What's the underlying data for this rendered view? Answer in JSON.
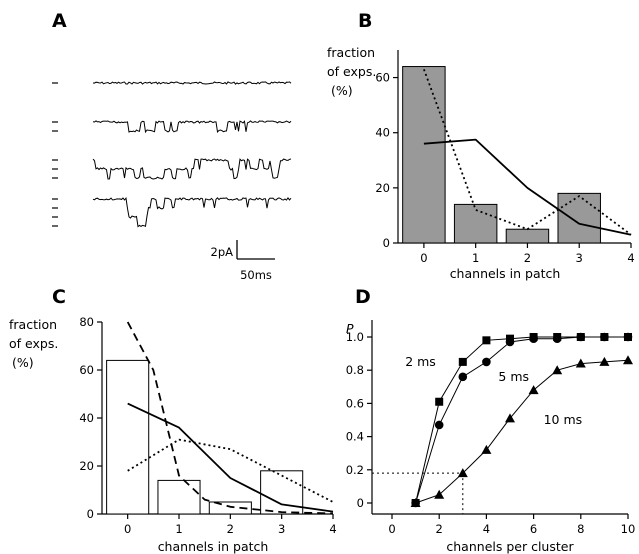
{
  "panel_labels": [
    "A",
    "B",
    "C",
    "D"
  ],
  "scale_bar": {
    "amplitude": "2pA",
    "time": "50ms"
  },
  "chart_data": [
    {
      "panel": "A",
      "type": "line",
      "description_traces": 4,
      "levels_per_trace": [
        1,
        2,
        3,
        4
      ]
    },
    {
      "panel": "B",
      "type": "bar",
      "title": "",
      "ylabel": [
        "fraction",
        "of exps.",
        "(%)"
      ],
      "xlabel": "channels in patch",
      "xlim": [
        -0.5,
        4
      ],
      "ylim": [
        0,
        70
      ],
      "xticks": [
        0,
        1,
        2,
        3,
        4
      ],
      "yticks": [
        0,
        20,
        40,
        60
      ],
      "categories": [
        0,
        1,
        2,
        3
      ],
      "values": [
        64,
        14,
        5,
        18
      ],
      "bar_color": "#999999",
      "lines": [
        {
          "style": "solid",
          "x": [
            0,
            1,
            2,
            3,
            4
          ],
          "y": [
            36,
            37.5,
            20,
            7,
            3
          ]
        },
        {
          "style": "dotted",
          "x": [
            0,
            1,
            2,
            3,
            4
          ],
          "y": [
            63,
            12,
            5,
            17,
            3
          ]
        }
      ]
    },
    {
      "panel": "C",
      "type": "bar",
      "title": "",
      "ylabel": [
        "fraction",
        "of exps.",
        "(%)"
      ],
      "xlabel": "channels in patch",
      "xlim": [
        -0.5,
        4
      ],
      "ylim": [
        0,
        80
      ],
      "xticks": [
        0,
        1,
        2,
        3,
        4
      ],
      "yticks": [
        0,
        20,
        40,
        60,
        80
      ],
      "categories": [
        0,
        1,
        2,
        3
      ],
      "values": [
        64,
        14,
        5,
        18
      ],
      "bar_color": "#ffffff",
      "lines": [
        {
          "style": "solid",
          "x": [
            0,
            1,
            2,
            3,
            4
          ],
          "y": [
            46,
            36,
            15,
            4,
            1
          ]
        },
        {
          "style": "dotted",
          "x": [
            0,
            1,
            2,
            3,
            4
          ],
          "y": [
            18,
            31,
            27,
            16,
            5
          ]
        },
        {
          "style": "dashed",
          "x": [
            0,
            0.5,
            1,
            1.5,
            2,
            3,
            4
          ],
          "y": [
            80,
            60,
            16,
            6,
            3,
            0.8,
            0.2
          ]
        }
      ]
    },
    {
      "panel": "D",
      "type": "line",
      "title": "",
      "ylabel": "P",
      "xlabel": "channels per cluster",
      "xlim": [
        0,
        10
      ],
      "ylim": [
        0,
        1.05
      ],
      "xticks": [
        0,
        2,
        4,
        6,
        8,
        10
      ],
      "yticks": [
        0,
        0.2,
        0.4,
        0.6,
        0.8,
        1.0
      ],
      "ytick_labels": [
        "0",
        "0.2",
        "0.4",
        "0.6",
        "0.8",
        "1.0"
      ],
      "series": [
        {
          "name": "2 ms",
          "marker": "square",
          "x": [
            1,
            2,
            3,
            4,
            5,
            6,
            7,
            8,
            9,
            10
          ],
          "y": [
            0,
            0.61,
            0.85,
            0.98,
            0.99,
            1.0,
            1.0,
            1.0,
            1.0,
            1.0
          ]
        },
        {
          "name": "5 ms",
          "marker": "circle",
          "x": [
            1,
            2,
            3,
            4,
            5,
            6,
            7,
            8,
            9,
            10
          ],
          "y": [
            0,
            0.47,
            0.76,
            0.85,
            0.97,
            0.99,
            0.99,
            1.0,
            1.0,
            1.0
          ]
        },
        {
          "name": "10 ms",
          "marker": "triangle",
          "x": [
            1,
            2,
            3,
            4,
            5,
            6,
            7,
            8,
            9,
            10
          ],
          "y": [
            0,
            0.05,
            0.18,
            0.32,
            0.51,
            0.68,
            0.8,
            0.84,
            0.85,
            0.86
          ]
        }
      ],
      "reference_lines": {
        "x": 3,
        "y": 0.18,
        "style": "dotted"
      }
    }
  ]
}
